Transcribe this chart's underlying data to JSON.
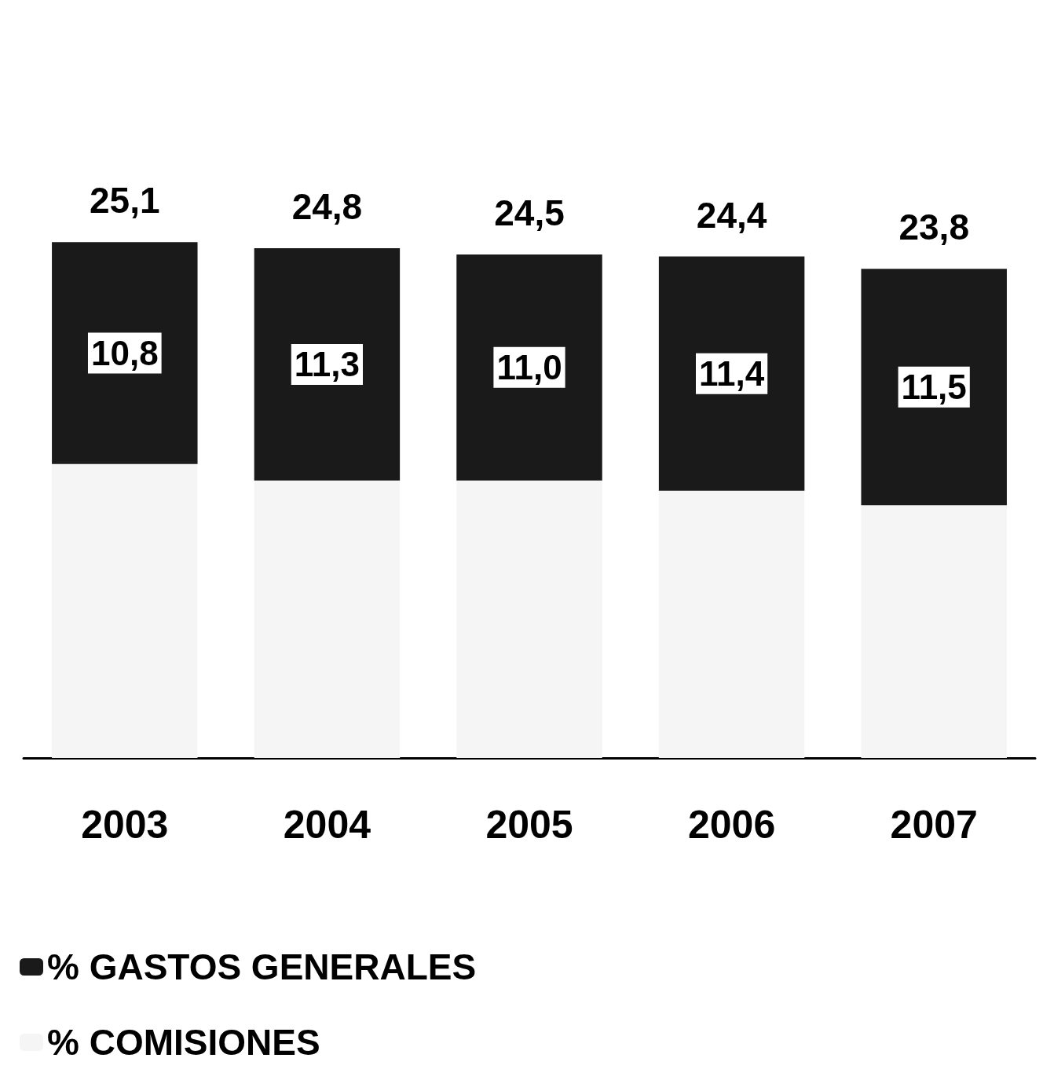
{
  "chart_data": {
    "type": "bar",
    "stacked": true,
    "categories": [
      "2003",
      "2004",
      "2005",
      "2006",
      "2007"
    ],
    "series": [
      {
        "name": "% COMISIONES",
        "color": "#f5f5f5",
        "values": [
          14.3,
          13.5,
          13.5,
          13.0,
          12.3
        ]
      },
      {
        "name": "% GASTOS GENERALES",
        "color": "#1a1a1a",
        "values": [
          10.8,
          11.3,
          11.0,
          11.4,
          11.5
        ],
        "value_labels": [
          "10,8",
          "11,3",
          "11,0",
          "11,4",
          "11,5"
        ]
      }
    ],
    "totals": [
      "25,1",
      "24,8",
      "24,5",
      "24,4",
      "23,8"
    ],
    "tick_labels": "x",
    "legend": "bottom left"
  }
}
